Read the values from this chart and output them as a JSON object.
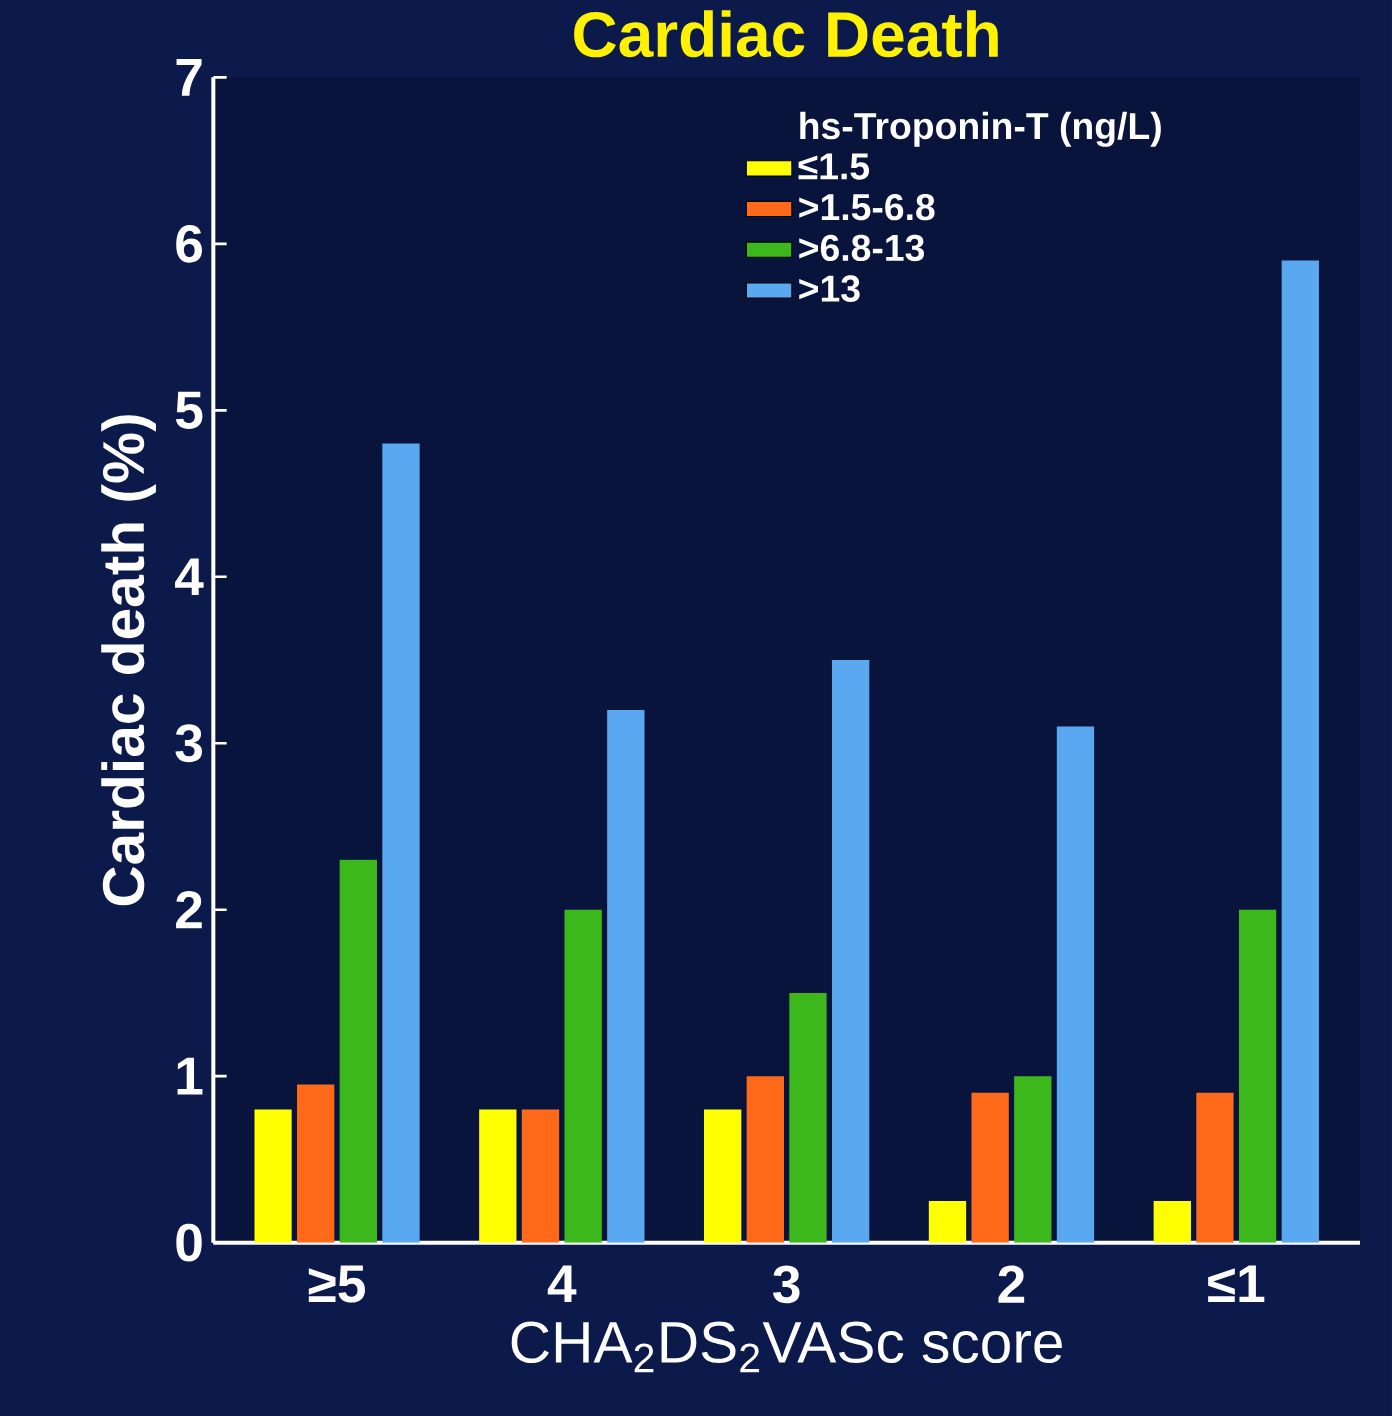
{
  "chart_data": {
    "type": "bar",
    "title": "Cardiac Death",
    "xlabel": "CHA$_{2}$DS$_{2}$VASc score",
    "ylabel": "Cardiac death (%)",
    "legend_title": "hs-Troponin-T (ng/L)",
    "categories": [
      "≥5",
      "4",
      "3",
      "2",
      "≤1"
    ],
    "series": [
      {
        "name": "≤1.5",
        "color": "#ffff00",
        "values": [
          0.8,
          0.8,
          0.8,
          0.25,
          0.25
        ]
      },
      {
        "name": ">1.5-6.8",
        "color": "#ff6a1a",
        "values": [
          0.95,
          0.8,
          1.0,
          0.9,
          0.9
        ]
      },
      {
        "name": ">6.8-13",
        "color": "#3cb81c",
        "values": [
          2.3,
          2.0,
          1.5,
          1.0,
          2.0
        ]
      },
      {
        "name": ">13",
        "color": "#5aa8f0",
        "values": [
          4.8,
          3.2,
          3.5,
          3.1,
          5.9
        ]
      }
    ],
    "ylim": [
      0,
      7
    ],
    "yticks": [
      0,
      1,
      2,
      3,
      4,
      5,
      6,
      7
    ],
    "grid": false,
    "legend": "top right"
  }
}
